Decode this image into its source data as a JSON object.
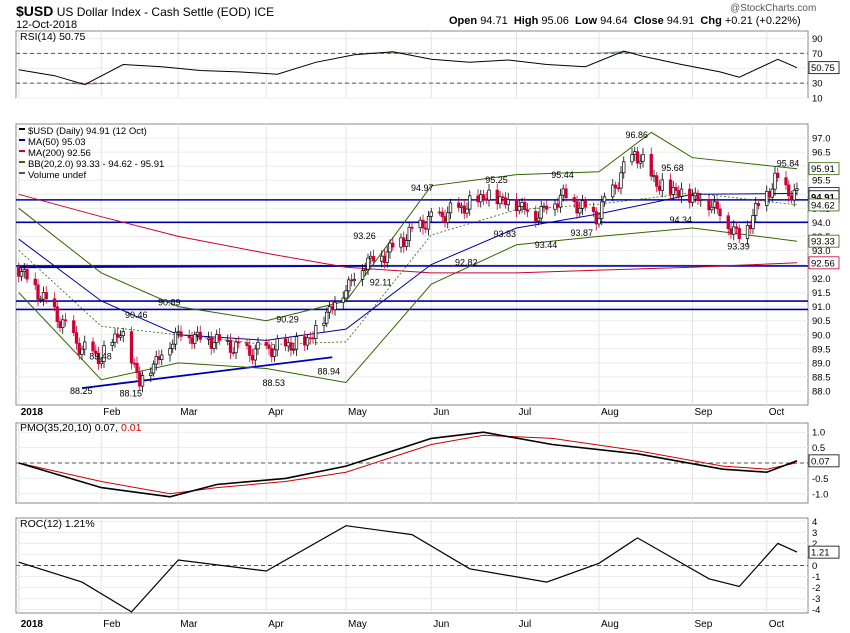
{
  "header": {
    "symbol": "$USD",
    "name": "US Dollar Index - Cash Settle (EOD) ICE",
    "date": "12-Oct-2018",
    "open_label": "Open",
    "open": "94.71",
    "high_label": "High",
    "high": "95.06",
    "low_label": "Low",
    "low": "94.64",
    "close_label": "Close",
    "close": "94.91",
    "chg_label": "Chg",
    "chg": "+0.21 (+0.22%)",
    "watermark": "@StockCharts.com"
  },
  "colors": {
    "up": "#000000",
    "down": "#cc0033",
    "ma50": "#000099",
    "ma200": "#cc0033",
    "bb": "#336600",
    "pmo_signal": "#cc0000",
    "support": "#0000aa",
    "rsi_fill": "#336633"
  },
  "chart_data": [
    {
      "type": "line",
      "panel": "RSI",
      "legend": "RSI(14) 50.75",
      "ylim": [
        10,
        100
      ],
      "ticks": [
        "90",
        "70",
        "50",
        "30",
        "10"
      ],
      "tick_values": [
        90,
        70,
        50,
        30,
        10
      ],
      "reference_lines": [
        70,
        30
      ],
      "last_value_label": "50.75",
      "x": [
        "2018-01-02",
        "2018-01-15",
        "2018-01-26",
        "2018-02-09",
        "2018-02-23",
        "2018-03-09",
        "2018-03-23",
        "2018-04-06",
        "2018-04-20",
        "2018-05-04",
        "2018-05-18",
        "2018-06-01",
        "2018-06-15",
        "2018-06-29",
        "2018-07-13",
        "2018-07-27",
        "2018-08-10",
        "2018-08-17",
        "2018-08-31",
        "2018-09-14",
        "2018-09-21",
        "2018-10-05",
        "2018-10-12"
      ],
      "values": [
        48,
        40,
        28,
        55,
        52,
        47,
        45,
        42,
        58,
        68,
        72,
        62,
        58,
        61,
        55,
        52,
        73,
        66,
        55,
        45,
        38,
        62,
        50.75
      ]
    },
    {
      "type": "candlestick",
      "panel": "price",
      "legend": [
        "$USD (Daily) 94.91 (12 Oct)",
        "MA(50) 95.03",
        "MA(200) 92.56",
        "BB(20,2.0) 93.33 - 94.62 - 95.91",
        "Volume undef"
      ],
      "ylim": [
        87.5,
        97.5
      ],
      "ticks": [
        "97.0",
        "96.5",
        "96.0",
        "95.5",
        "95.0",
        "94.5",
        "94.0",
        "93.5",
        "93.0",
        "92.5",
        "92.0",
        "91.5",
        "91.0",
        "90.5",
        "90.0",
        "89.5",
        "89.0",
        "88.5",
        "88.0"
      ],
      "tick_values": [
        97.0,
        96.5,
        96.0,
        95.5,
        95.0,
        94.5,
        94.0,
        93.5,
        93.0,
        92.5,
        92.0,
        91.5,
        91.0,
        90.5,
        90.0,
        89.5,
        89.0,
        88.5,
        88.0
      ],
      "x": [
        "2018-01-02",
        "2018-01-12",
        "2018-01-25",
        "2018-02-01",
        "2018-02-08",
        "2018-02-15",
        "2018-03-01",
        "2018-03-15",
        "2018-03-27",
        "2018-04-09",
        "2018-04-17",
        "2018-04-24",
        "2018-05-08",
        "2018-05-15",
        "2018-05-29",
        "2018-06-14",
        "2018-06-21",
        "2018-07-02",
        "2018-07-09",
        "2018-07-19",
        "2018-07-31",
        "2018-08-14",
        "2018-08-23",
        "2018-09-03",
        "2018-09-11",
        "2018-09-21",
        "2018-10-04",
        "2018-10-12"
      ],
      "close": [
        92.4,
        91.2,
        89.5,
        89.2,
        90.2,
        88.4,
        90.1,
        89.8,
        89.4,
        89.6,
        89.8,
        90.8,
        92.6,
        92.9,
        94.0,
        94.6,
        95.0,
        94.7,
        94.3,
        95.0,
        94.2,
        96.5,
        95.3,
        95.0,
        94.7,
        93.5,
        95.5,
        94.91
      ],
      "annotations": [
        {
          "x": "2018-01-25",
          "value": 88.25,
          "label": "88.25"
        },
        {
          "x": "2018-02-01",
          "value": 89.48,
          "label": "89.48"
        },
        {
          "x": "2018-02-12",
          "value": 88.15,
          "label": "88.15"
        },
        {
          "x": "2018-02-14",
          "value": 90.46,
          "label": "90.46"
        },
        {
          "x": "2018-02-26",
          "value": 90.89,
          "label": "90.89"
        },
        {
          "x": "2018-04-05",
          "value": 88.53,
          "label": "88.53"
        },
        {
          "x": "2018-04-10",
          "value": 90.29,
          "label": "90.29"
        },
        {
          "x": "2018-04-25",
          "value": 88.94,
          "label": "88.94"
        },
        {
          "x": "2018-05-08",
          "value": 93.26,
          "label": "93.26"
        },
        {
          "x": "2018-05-14",
          "value": 92.11,
          "label": "92.11"
        },
        {
          "x": "2018-05-29",
          "value": 94.97,
          "label": "94.97"
        },
        {
          "x": "2018-06-14",
          "value": 92.82,
          "label": "92.82"
        },
        {
          "x": "2018-06-25",
          "value": 95.25,
          "label": "95.25"
        },
        {
          "x": "2018-06-28",
          "value": 93.83,
          "label": "93.83"
        },
        {
          "x": "2018-07-13",
          "value": 93.44,
          "label": "93.44"
        },
        {
          "x": "2018-07-19",
          "value": 95.44,
          "label": "95.44"
        },
        {
          "x": "2018-07-26",
          "value": 93.87,
          "label": "93.87"
        },
        {
          "x": "2018-08-15",
          "value": 96.86,
          "label": "96.86"
        },
        {
          "x": "2018-08-28",
          "value": 95.68,
          "label": "95.68"
        },
        {
          "x": "2018-08-31",
          "value": 94.34,
          "label": "94.34"
        },
        {
          "x": "2018-09-21",
          "value": 93.39,
          "label": "93.39"
        },
        {
          "x": "2018-10-09",
          "value": 95.84,
          "label": "95.84"
        }
      ],
      "right_labels": [
        "95.91",
        "95.03",
        "94.91",
        "94.62",
        "93.33",
        "92.56"
      ],
      "right_values": [
        95.91,
        95.03,
        94.91,
        94.62,
        93.33,
        92.56
      ],
      "support_levels": [
        94.8,
        94.0,
        92.45,
        91.2,
        90.9
      ],
      "trendlines": [
        {
          "from": {
            "x": "2018-01-25",
            "value": 88.1
          },
          "to": {
            "x": "2018-04-26",
            "value": 89.2
          }
        },
        {
          "from": {
            "x": "2018-01-02",
            "value": 92.4
          },
          "to": {
            "x": "2018-05-08",
            "value": 92.45
          }
        }
      ],
      "series": [
        {
          "name": "MA(50)",
          "x": [
            "2018-01-02",
            "2018-02-01",
            "2018-03-01",
            "2018-04-02",
            "2018-05-01",
            "2018-06-01",
            "2018-07-02",
            "2018-08-01",
            "2018-09-04",
            "2018-10-12"
          ],
          "values": [
            93.4,
            91.2,
            90.0,
            89.8,
            90.2,
            92.5,
            93.8,
            94.3,
            95.0,
            95.03
          ]
        },
        {
          "name": "MA(200)",
          "x": [
            "2018-01-02",
            "2018-02-01",
            "2018-03-01",
            "2018-04-02",
            "2018-05-01",
            "2018-06-01",
            "2018-07-02",
            "2018-08-01",
            "2018-09-04",
            "2018-10-12"
          ],
          "values": [
            95.0,
            94.2,
            93.5,
            92.9,
            92.4,
            92.2,
            92.2,
            92.3,
            92.4,
            92.56
          ]
        },
        {
          "name": "BB upper",
          "x": [
            "2018-01-02",
            "2018-02-01",
            "2018-03-01",
            "2018-04-02",
            "2018-05-01",
            "2018-06-01",
            "2018-07-02",
            "2018-08-01",
            "2018-08-20",
            "2018-09-04",
            "2018-10-12"
          ],
          "values": [
            94.5,
            92.2,
            91.0,
            90.5,
            91.2,
            95.3,
            95.7,
            95.8,
            97.2,
            96.3,
            95.91
          ]
        },
        {
          "name": "BB lower",
          "x": [
            "2018-01-02",
            "2018-02-01",
            "2018-03-01",
            "2018-04-02",
            "2018-05-01",
            "2018-06-01",
            "2018-07-02",
            "2018-08-01",
            "2018-09-04",
            "2018-10-12"
          ],
          "values": [
            91.5,
            88.4,
            89.0,
            88.8,
            88.3,
            91.8,
            93.2,
            93.5,
            93.8,
            93.33
          ]
        }
      ]
    },
    {
      "type": "line",
      "panel": "PMO",
      "legend": "PMO(35,20,10) 0.07, 0.01",
      "ylim": [
        -1.3,
        1.3
      ],
      "ticks": [
        "1.0",
        "0.5",
        "0.0",
        "-0.5",
        "-1.0"
      ],
      "tick_values": [
        1.0,
        0.5,
        0.0,
        -0.5,
        -1.0
      ],
      "last_value_label": "0.07",
      "x": [
        "2018-01-02",
        "2018-02-01",
        "2018-02-26",
        "2018-03-15",
        "2018-04-09",
        "2018-05-01",
        "2018-06-01",
        "2018-06-20",
        "2018-07-15",
        "2018-08-15",
        "2018-09-15",
        "2018-10-01",
        "2018-10-12"
      ],
      "series": [
        {
          "name": "PMO",
          "values": [
            0.0,
            -0.8,
            -1.1,
            -0.7,
            -0.5,
            -0.1,
            0.8,
            1.0,
            0.6,
            0.3,
            -0.2,
            -0.3,
            0.07
          ]
        },
        {
          "name": "Signal",
          "values": [
            0.0,
            -0.6,
            -1.0,
            -0.8,
            -0.6,
            -0.3,
            0.6,
            0.9,
            0.8,
            0.4,
            -0.1,
            -0.2,
            0.01
          ]
        }
      ]
    },
    {
      "type": "line",
      "panel": "ROC",
      "legend": "ROC(12) 1.21%",
      "ylim": [
        -4.3,
        4.3
      ],
      "ticks": [
        "4",
        "3",
        "2",
        "1",
        "0",
        "-1",
        "-2",
        "-3",
        "-4"
      ],
      "tick_values": [
        4,
        3,
        2,
        1,
        0,
        -1,
        -2,
        -3,
        -4
      ],
      "last_value_label": "1.21",
      "x": [
        "2018-01-02",
        "2018-01-25",
        "2018-02-12",
        "2018-03-01",
        "2018-04-02",
        "2018-05-01",
        "2018-05-25",
        "2018-06-15",
        "2018-07-13",
        "2018-08-01",
        "2018-08-15",
        "2018-09-10",
        "2018-09-21",
        "2018-10-05",
        "2018-10-12"
      ],
      "values": [
        0.3,
        -1.5,
        -4.2,
        0.5,
        -0.5,
        3.6,
        2.8,
        -0.3,
        -1.5,
        0.2,
        2.5,
        -1.2,
        -1.9,
        2.0,
        1.21
      ]
    }
  ],
  "months": [
    "2018",
    "Feb",
    "Mar",
    "Apr",
    "May",
    "Jun",
    "Jul",
    "Aug",
    "Sep",
    "Oct"
  ],
  "month_dates": [
    "2018-01-02",
    "2018-02-01",
    "2018-03-01",
    "2018-04-02",
    "2018-05-01",
    "2018-06-01",
    "2018-07-02",
    "2018-08-01",
    "2018-09-04",
    "2018-10-01"
  ]
}
